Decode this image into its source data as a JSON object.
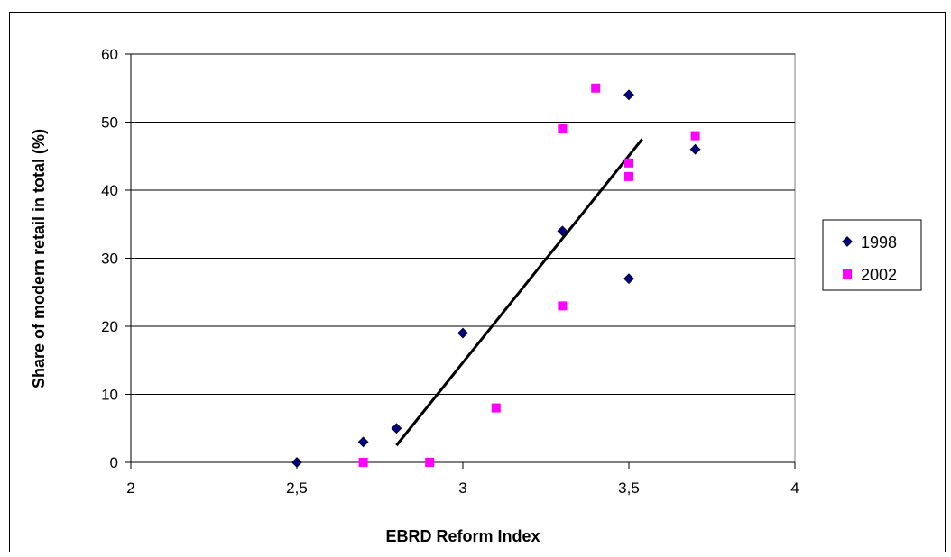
{
  "chart_data": {
    "type": "scatter",
    "xlabel": "EBRD Reform Index",
    "ylabel": "Share of modern retail in total (%)",
    "xlim": [
      2,
      4
    ],
    "ylim": [
      0,
      60
    ],
    "x_ticks": [
      "2",
      "2,5",
      "3",
      "3,5",
      "4"
    ],
    "y_ticks": [
      "0",
      "10",
      "20",
      "30",
      "40",
      "50",
      "60"
    ],
    "grid": "horizontal",
    "legend_position": "right",
    "series": [
      {
        "name": "1998",
        "color": "#000080",
        "marker": "diamond",
        "points": [
          {
            "x": 2.5,
            "y": 0
          },
          {
            "x": 2.7,
            "y": 3
          },
          {
            "x": 2.8,
            "y": 5
          },
          {
            "x": 3.0,
            "y": 19
          },
          {
            "x": 3.3,
            "y": 34
          },
          {
            "x": 3.5,
            "y": 54
          },
          {
            "x": 3.5,
            "y": 27
          },
          {
            "x": 3.7,
            "y": 46
          }
        ]
      },
      {
        "name": "2002",
        "color": "#ff00ff",
        "marker": "square",
        "points": [
          {
            "x": 2.7,
            "y": 0
          },
          {
            "x": 2.9,
            "y": 0
          },
          {
            "x": 3.1,
            "y": 8
          },
          {
            "x": 3.3,
            "y": 49
          },
          {
            "x": 3.3,
            "y": 23
          },
          {
            "x": 3.4,
            "y": 55
          },
          {
            "x": 3.5,
            "y": 44
          },
          {
            "x": 3.5,
            "y": 42
          },
          {
            "x": 3.7,
            "y": 48
          }
        ]
      }
    ],
    "trendline": {
      "color": "#000000",
      "from": {
        "x": 2.8,
        "y": 2.5
      },
      "to": {
        "x": 3.54,
        "y": 47.5
      }
    }
  }
}
